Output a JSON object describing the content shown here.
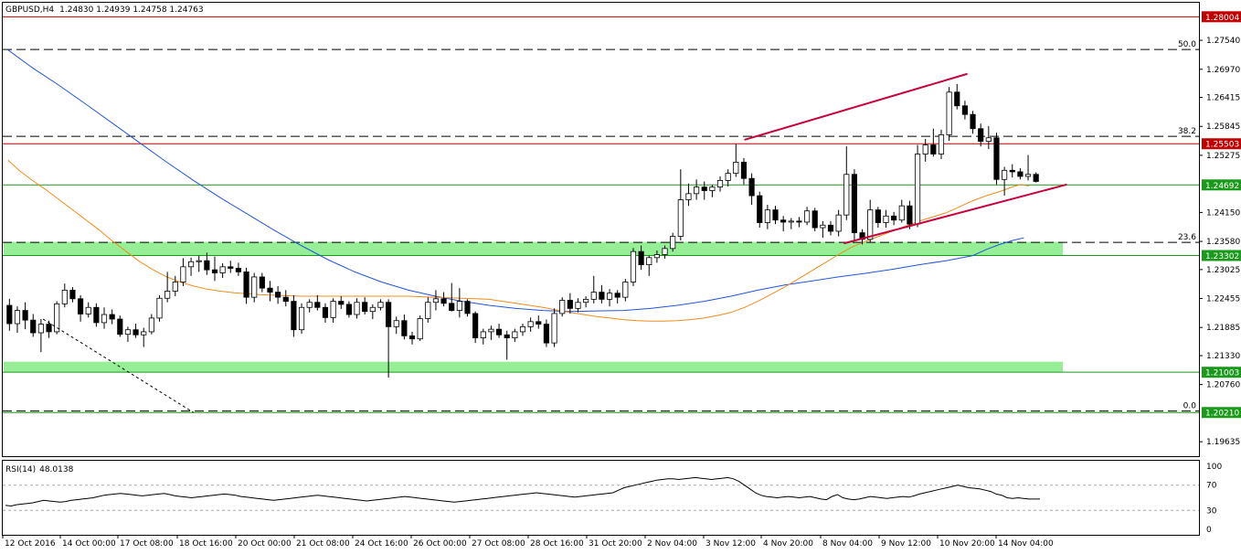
{
  "header": {
    "symbol": "GBPUSD,H4",
    "ohlc": "1.24830 1.24939 1.24758 1.24763"
  },
  "chart_data": {
    "type": "candlestick",
    "symbol": "GBPUSD",
    "timeframe": "H4",
    "y_ticks": [
      "1.27540",
      "1.26970",
      "1.26415",
      "1.25845",
      "1.25275",
      "1.24150",
      "1.23580",
      "1.23025",
      "1.22455",
      "1.21885",
      "1.21330",
      "1.20760",
      "1.19635"
    ],
    "ylim": [
      1.1935,
      1.2828
    ],
    "x_ticks": [
      "12 Oct 2016",
      "14 Oct 00:00",
      "17 Oct 08:00",
      "18 Oct 16:00",
      "20 Oct 00:00",
      "21 Oct 08:00",
      "24 Oct 16:00",
      "26 Oct 00:00",
      "27 Oct 08:00",
      "28 Oct 16:00",
      "31 Oct 20:00",
      "2 Nov 04:00",
      "3 Nov 12:00",
      "4 Nov 20:00",
      "8 Nov 04:00",
      "9 Nov 12:00",
      "10 Nov 20:00",
      "14 Nov 04:00"
    ],
    "price_labels": [
      {
        "text": "1.28004",
        "value": 1.28004,
        "color": "#c00000"
      },
      {
        "text": "1.25503",
        "value": 1.25503,
        "color": "#c00000"
      },
      {
        "text": "1.24692",
        "value": 1.24692,
        "color": "#1a9a1a"
      },
      {
        "text": "1.23302",
        "value": 1.23302,
        "color": "#1a9a1a"
      },
      {
        "text": "1.21003",
        "value": 1.21003,
        "color": "#1a9a1a"
      },
      {
        "text": "1.20210",
        "value": 1.2021,
        "color": "#1a9a1a"
      }
    ],
    "fibonacci": [
      {
        "label": "50.0",
        "value": 1.2736
      },
      {
        "label": "38.2",
        "value": 1.2565
      },
      {
        "label": "23.6",
        "value": 1.2356
      },
      {
        "label": "0.0",
        "value": 1.2024
      }
    ],
    "support_zones": [
      {
        "from": 1.233,
        "to": 1.2357,
        "color": "#90ee90"
      },
      {
        "from": 1.21,
        "to": 1.2121,
        "color": "#90ee90"
      }
    ],
    "candles": [
      [
        1.2232,
        1.2245,
        1.2182,
        1.2196
      ],
      [
        1.2196,
        1.223,
        1.2178,
        1.2222
      ],
      [
        1.2222,
        1.2238,
        1.2185,
        1.2203
      ],
      [
        1.2203,
        1.2215,
        1.217,
        1.2178
      ],
      [
        1.2178,
        1.2205,
        1.214,
        1.2195
      ],
      [
        1.2195,
        1.2202,
        1.2168,
        1.218
      ],
      [
        1.218,
        1.224,
        1.2175,
        1.2235
      ],
      [
        1.2235,
        1.2275,
        1.2228,
        1.2262
      ],
      [
        1.2262,
        1.2268,
        1.2238,
        1.2245
      ],
      [
        1.2245,
        1.2252,
        1.22,
        1.2215
      ],
      [
        1.2215,
        1.2238,
        1.2208,
        1.2228
      ],
      [
        1.2228,
        1.2236,
        1.219,
        1.2198
      ],
      [
        1.2198,
        1.2228,
        1.2186,
        1.2214
      ],
      [
        1.2214,
        1.2224,
        1.2195,
        1.2205
      ],
      [
        1.2205,
        1.2212,
        1.217,
        1.2175
      ],
      [
        1.2175,
        1.219,
        1.216,
        1.2184
      ],
      [
        1.2184,
        1.2196,
        1.2168,
        1.2174
      ],
      [
        1.2174,
        1.2188,
        1.215,
        1.218
      ],
      [
        1.218,
        1.2215,
        1.2175,
        1.2207
      ],
      [
        1.2207,
        1.2252,
        1.22,
        1.2246
      ],
      [
        1.2246,
        1.2298,
        1.2238,
        1.226
      ],
      [
        1.226,
        1.229,
        1.225,
        1.2278
      ],
      [
        1.2278,
        1.2325,
        1.227,
        1.2308
      ],
      [
        1.2308,
        1.2326,
        1.229,
        1.2318
      ],
      [
        1.2318,
        1.233,
        1.2298,
        1.232
      ],
      [
        1.232,
        1.2336,
        1.2292,
        1.2302
      ],
      [
        1.2302,
        1.2328,
        1.228,
        1.2296
      ],
      [
        1.2296,
        1.2315,
        1.2286,
        1.2308
      ],
      [
        1.2308,
        1.232,
        1.2296,
        1.2305
      ],
      [
        1.2305,
        1.2316,
        1.229,
        1.2298
      ],
      [
        1.2298,
        1.2306,
        1.2235,
        1.2248
      ],
      [
        1.2248,
        1.2296,
        1.2238,
        1.2288
      ],
      [
        1.2288,
        1.2296,
        1.2258,
        1.2266
      ],
      [
        1.2266,
        1.228,
        1.224,
        1.2258
      ],
      [
        1.2258,
        1.227,
        1.2235,
        1.2248
      ],
      [
        1.2248,
        1.2262,
        1.223,
        1.224
      ],
      [
        1.224,
        1.2252,
        1.217,
        1.2184
      ],
      [
        1.2184,
        1.2236,
        1.2176,
        1.2228
      ],
      [
        1.2228,
        1.2244,
        1.2218,
        1.2238
      ],
      [
        1.2238,
        1.2252,
        1.2222,
        1.2228
      ],
      [
        1.2228,
        1.2236,
        1.2198,
        1.2208
      ],
      [
        1.2208,
        1.2246,
        1.2198,
        1.224
      ],
      [
        1.224,
        1.225,
        1.2225,
        1.2234
      ],
      [
        1.2234,
        1.224,
        1.2208,
        1.2214
      ],
      [
        1.2214,
        1.2246,
        1.2206,
        1.2238
      ],
      [
        1.2238,
        1.2248,
        1.2214,
        1.222
      ],
      [
        1.222,
        1.2234,
        1.2205,
        1.2228
      ],
      [
        1.2228,
        1.2244,
        1.2222,
        1.2238
      ],
      [
        1.2238,
        1.2244,
        1.209,
        1.219
      ],
      [
        1.219,
        1.221,
        1.2176,
        1.2202
      ],
      [
        1.2202,
        1.2214,
        1.2165,
        1.2172
      ],
      [
        1.2172,
        1.218,
        1.2155,
        1.2166
      ],
      [
        1.2166,
        1.2212,
        1.2162,
        1.2206
      ],
      [
        1.2206,
        1.2248,
        1.2198,
        1.2238
      ],
      [
        1.2238,
        1.2262,
        1.2222,
        1.2245
      ],
      [
        1.2245,
        1.2258,
        1.223,
        1.2236
      ],
      [
        1.2236,
        1.2276,
        1.222,
        1.2222
      ],
      [
        1.2222,
        1.2266,
        1.2208,
        1.224
      ],
      [
        1.224,
        1.2244,
        1.221,
        1.2216
      ],
      [
        1.2216,
        1.222,
        1.2158,
        1.2168
      ],
      [
        1.2168,
        1.2186,
        1.2155,
        1.218
      ],
      [
        1.218,
        1.2192,
        1.2164,
        1.2185
      ],
      [
        1.2185,
        1.2196,
        1.2168,
        1.2174
      ],
      [
        1.2174,
        1.2182,
        1.2125,
        1.2168
      ],
      [
        1.2168,
        1.2186,
        1.216,
        1.218
      ],
      [
        1.218,
        1.2196,
        1.2172,
        1.219
      ],
      [
        1.219,
        1.2208,
        1.218,
        1.22
      ],
      [
        1.22,
        1.2212,
        1.2186,
        1.2195
      ],
      [
        1.2195,
        1.2204,
        1.215,
        1.2158
      ],
      [
        1.2158,
        1.2226,
        1.215,
        1.2216
      ],
      [
        1.2216,
        1.2248,
        1.221,
        1.2242
      ],
      [
        1.2242,
        1.2256,
        1.2216,
        1.2226
      ],
      [
        1.2226,
        1.2246,
        1.2218,
        1.2238
      ],
      [
        1.2238,
        1.225,
        1.2228,
        1.2244
      ],
      [
        1.2244,
        1.229,
        1.2236,
        1.2258
      ],
      [
        1.2258,
        1.2272,
        1.2236,
        1.2244
      ],
      [
        1.2244,
        1.2264,
        1.223,
        1.2256
      ],
      [
        1.2256,
        1.2262,
        1.2236,
        1.2248
      ],
      [
        1.2248,
        1.2284,
        1.224,
        1.2278
      ],
      [
        1.2278,
        1.2345,
        1.227,
        1.2338
      ],
      [
        1.2338,
        1.235,
        1.2302,
        1.2312
      ],
      [
        1.2312,
        1.233,
        1.229,
        1.2326
      ],
      [
        1.2326,
        1.234,
        1.2316,
        1.2332
      ],
      [
        1.2332,
        1.235,
        1.2324,
        1.2344
      ],
      [
        1.2344,
        1.2375,
        1.2338,
        1.2368
      ],
      [
        1.2368,
        1.25,
        1.236,
        1.244
      ],
      [
        1.244,
        1.2472,
        1.2428,
        1.2452
      ],
      [
        1.2452,
        1.248,
        1.244,
        1.2465
      ],
      [
        1.2465,
        1.2476,
        1.244,
        1.2458
      ],
      [
        1.2458,
        1.247,
        1.2445,
        1.2465
      ],
      [
        1.2465,
        1.2486,
        1.2456,
        1.2478
      ],
      [
        1.2478,
        1.25,
        1.2466,
        1.2492
      ],
      [
        1.2492,
        1.255,
        1.2485,
        1.2514
      ],
      [
        1.2514,
        1.2522,
        1.247,
        1.2482
      ],
      [
        1.2482,
        1.2492,
        1.243,
        1.2448
      ],
      [
        1.2448,
        1.2456,
        1.2385,
        1.2395
      ],
      [
        1.2395,
        1.243,
        1.2382,
        1.242
      ],
      [
        1.242,
        1.2428,
        1.2392,
        1.24
      ],
      [
        1.24,
        1.2408,
        1.2378,
        1.2396
      ],
      [
        1.2396,
        1.2404,
        1.2382,
        1.2398
      ],
      [
        1.2398,
        1.2406,
        1.2386,
        1.2396
      ],
      [
        1.2396,
        1.2426,
        1.239,
        1.2418
      ],
      [
        1.2418,
        1.2424,
        1.2378,
        1.2385
      ],
      [
        1.2385,
        1.2398,
        1.2365,
        1.239
      ],
      [
        1.239,
        1.2398,
        1.237,
        1.2378
      ],
      [
        1.2378,
        1.242,
        1.2368,
        1.241
      ],
      [
        1.241,
        1.2545,
        1.24,
        1.249
      ],
      [
        1.249,
        1.25,
        1.236,
        1.2375
      ],
      [
        1.2375,
        1.2382,
        1.2352,
        1.2362
      ],
      [
        1.2362,
        1.244,
        1.2356,
        1.242
      ],
      [
        1.242,
        1.2426,
        1.2385,
        1.2395
      ],
      [
        1.2395,
        1.242,
        1.2385,
        1.2408
      ],
      [
        1.2408,
        1.2416,
        1.239,
        1.24
      ],
      [
        1.24,
        1.244,
        1.2395,
        1.2428
      ],
      [
        1.2428,
        1.2438,
        1.2382,
        1.2392
      ],
      [
        1.2392,
        1.2548,
        1.2386,
        1.253
      ],
      [
        1.253,
        1.256,
        1.2515,
        1.2548
      ],
      [
        1.2548,
        1.258,
        1.2525,
        1.253
      ],
      [
        1.253,
        1.2578,
        1.252,
        1.2568
      ],
      [
        1.2568,
        1.2662,
        1.2556,
        1.2652
      ],
      [
        1.2652,
        1.2668,
        1.2618,
        1.2625
      ],
      [
        1.2625,
        1.2635,
        1.2598,
        1.2608
      ],
      [
        1.2608,
        1.2615,
        1.257,
        1.258
      ],
      [
        1.258,
        1.259,
        1.2545,
        1.2555
      ],
      [
        1.2555,
        1.2585,
        1.254,
        1.2562
      ],
      [
        1.2562,
        1.2572,
        1.247,
        1.248
      ],
      [
        1.248,
        1.2505,
        1.2448,
        1.2498
      ],
      [
        1.2498,
        1.251,
        1.2484,
        1.2495
      ],
      [
        1.2495,
        1.2502,
        1.248,
        1.2486
      ],
      [
        1.2486,
        1.2528,
        1.2478,
        1.249
      ],
      [
        1.249,
        1.2494,
        1.2474,
        1.2476
      ]
    ],
    "ma_fast": [
      1.2518,
      1.2498,
      1.2478,
      1.246,
      1.244,
      1.242,
      1.24,
      1.238,
      1.2358,
      1.2338,
      1.2318,
      1.2302,
      1.2288,
      1.2278,
      1.227,
      1.2264,
      1.226,
      1.2257,
      1.2255,
      1.2253,
      1.2252,
      1.2251,
      1.225,
      1.225,
      1.225,
      1.225,
      1.225,
      1.225,
      1.225,
      1.225,
      1.225,
      1.2249,
      1.2248,
      1.2247,
      1.2246,
      1.2245,
      1.2244,
      1.224,
      1.2236,
      1.2232,
      1.2228,
      1.2223,
      1.2218,
      1.2214,
      1.221,
      1.2207,
      1.2204,
      1.2202,
      1.2201,
      1.2201,
      1.2202,
      1.2204,
      1.2207,
      1.2212,
      1.2218,
      1.2228,
      1.224,
      1.2254,
      1.2268,
      1.2284,
      1.23,
      1.2316,
      1.2332,
      1.2347,
      1.2358,
      1.2368,
      1.2378,
      1.2388,
      1.2398,
      1.2406,
      1.2414,
      1.2426,
      1.2438,
      1.2448,
      1.2456,
      1.2466,
      1.247,
      1.2467
    ],
    "ma_fast_x": [
      1,
      5,
      10,
      15,
      20,
      25,
      30,
      35,
      40,
      45,
      50,
      55,
      60,
      65,
      70,
      75,
      80,
      85,
      90,
      95,
      100,
      105,
      110,
      115,
      120,
      125,
      130,
      135,
      140,
      145,
      150,
      155,
      160,
      165,
      170,
      175,
      180,
      185,
      190,
      195,
      200,
      205,
      210,
      215,
      220,
      225,
      230,
      235,
      240,
      245,
      250,
      255,
      260,
      265,
      270,
      275,
      280,
      285,
      290,
      295,
      300,
      305,
      310,
      315,
      320,
      325,
      330,
      335,
      340,
      345,
      350,
      355,
      360,
      365,
      370,
      375,
      378,
      381
    ],
    "ma_slow": [
      1.2735,
      1.27,
      1.2665,
      1.2628,
      1.259,
      1.2552,
      1.2514,
      1.2478,
      1.2444,
      1.2412,
      1.238,
      1.235,
      1.2322,
      1.2298,
      1.2278,
      1.2262,
      1.225,
      1.224,
      1.2232,
      1.2226,
      1.2222,
      1.222,
      1.2221,
      1.2222,
      1.2226,
      1.2232,
      1.224,
      1.225,
      1.2262,
      1.2272,
      1.228,
      1.2288,
      1.2295,
      1.2303,
      1.2312,
      1.232,
      1.233,
      1.2342,
      1.2352,
      1.236,
      1.2365
    ],
    "ma_slow_x": [
      1,
      10,
      20,
      30,
      40,
      50,
      60,
      70,
      80,
      90,
      100,
      110,
      120,
      130,
      140,
      150,
      160,
      170,
      180,
      190,
      200,
      210,
      220,
      230,
      240,
      250,
      260,
      270,
      280,
      290,
      300,
      310,
      320,
      330,
      340,
      350,
      360,
      365,
      370,
      375,
      379
    ],
    "trendlines": [
      {
        "kind": "channel-top",
        "from": [
          275,
          1.2558
        ],
        "to": [
          358,
          1.2688
        ],
        "color": "#c8003c"
      },
      {
        "kind": "channel-bottom",
        "from": [
          312,
          1.2354
        ],
        "to": [
          395,
          1.247
        ],
        "color": "#c8003c"
      },
      {
        "kind": "dotted-down",
        "from": [
          14,
          1.2205
        ],
        "to": [
          70,
          1.2021
        ],
        "color": "#000000"
      }
    ],
    "rsi": {
      "label": "RSI(14)",
      "value_text": "48.0138",
      "ylim": [
        0,
        100
      ],
      "ticks": [
        "100",
        "70",
        "30",
        "0"
      ],
      "levels": [
        70,
        30
      ],
      "values": [
        38,
        37,
        39,
        40,
        41,
        42,
        44,
        46,
        45,
        44,
        43,
        44,
        46,
        47,
        48,
        49,
        50,
        52,
        54,
        55,
        56,
        57,
        56,
        55,
        54,
        53,
        54,
        55,
        56,
        57,
        55,
        53,
        52,
        51,
        50,
        51,
        52,
        53,
        54,
        55,
        56,
        55,
        54,
        52,
        51,
        50,
        49,
        48,
        47,
        46,
        47,
        48,
        49,
        50,
        51,
        52,
        53,
        54,
        53,
        52,
        51,
        50,
        49,
        48,
        47,
        46,
        45,
        46,
        47,
        48,
        49,
        50,
        51,
        52,
        51,
        50,
        49,
        48,
        47,
        46,
        45,
        44,
        43,
        44,
        45,
        46,
        47,
        48,
        49,
        50,
        51,
        52,
        53,
        54,
        55,
        56,
        57,
        58,
        57,
        56,
        55,
        54,
        53,
        52,
        51,
        52,
        53,
        54,
        55,
        56,
        57,
        58,
        62,
        66,
        68,
        70,
        72,
        74,
        76,
        78,
        79,
        80,
        80,
        79,
        80,
        81,
        82,
        81,
        80,
        79,
        80,
        81,
        82,
        80,
        76,
        70,
        64,
        58,
        54,
        52,
        51,
        50,
        51,
        52,
        51,
        50,
        51,
        52,
        50,
        48,
        47,
        52,
        55,
        50,
        48,
        47,
        48,
        50,
        52,
        51,
        50,
        49,
        50,
        51,
        52,
        51,
        53,
        56,
        58,
        60,
        62,
        64,
        66,
        68,
        70,
        68,
        66,
        65,
        64,
        62,
        60,
        56,
        54,
        50,
        49,
        50,
        49,
        48,
        48,
        48
      ]
    }
  }
}
